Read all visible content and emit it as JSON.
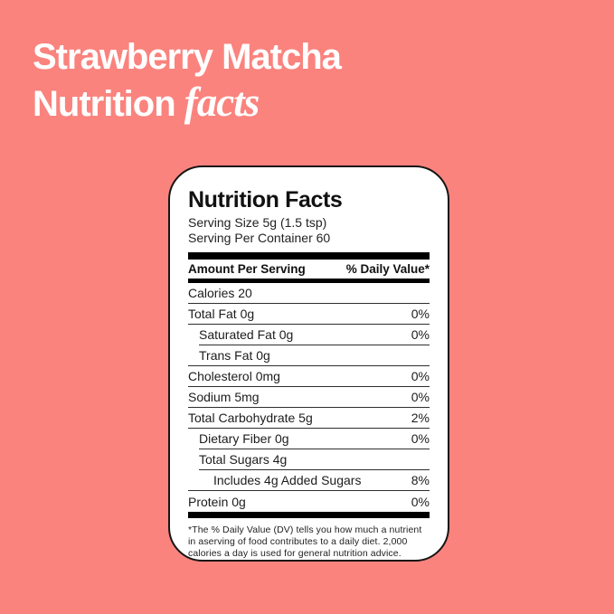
{
  "colors": {
    "background": "#FA837E",
    "card_background": "#FFFFFF",
    "card_border": "#151515",
    "title_text": "#FFFFFF",
    "label_text": "#1C1C1C",
    "bar": "#000000"
  },
  "title": {
    "line1": "Strawberry Matcha",
    "line2_regular": "Nutrition",
    "line2_italic": "facts"
  },
  "label": {
    "heading": "Nutrition Facts",
    "serving_size": "Serving Size 5g (1.5 tsp)",
    "servings_per_container": "Serving Per Container 60",
    "amount_per_serving": "Amount Per Serving",
    "daily_value_header": "% Daily Value*",
    "rows": [
      {
        "label": "Calories 20",
        "value": "",
        "indent": 0,
        "divider": "full"
      },
      {
        "label": "Total Fat 0g",
        "value": "0%",
        "indent": 0,
        "divider": "full"
      },
      {
        "label": "Saturated Fat 0g",
        "value": "0%",
        "indent": 1,
        "divider": "indent"
      },
      {
        "label": "Trans Fat 0g",
        "value": "",
        "indent": 1,
        "divider": "full"
      },
      {
        "label": "Cholesterol 0mg",
        "value": "0%",
        "indent": 0,
        "divider": "full"
      },
      {
        "label": "Sodium 5mg",
        "value": "0%",
        "indent": 0,
        "divider": "full"
      },
      {
        "label": "Total Carbohydrate 5g",
        "value": "2%",
        "indent": 0,
        "divider": "full"
      },
      {
        "label": "Dietary Fiber 0g",
        "value": "0%",
        "indent": 1,
        "divider": "indent"
      },
      {
        "label": "Total Sugars 4g",
        "value": "",
        "indent": 1,
        "divider": "indent"
      },
      {
        "label": "Includes 4g Added Sugars",
        "value": "8%",
        "indent": 2,
        "divider": "full"
      },
      {
        "label": "Protein 0g",
        "value": "0%",
        "indent": 0,
        "divider": "none"
      }
    ],
    "footnote": "*The % Daily Value (DV) tells you how much a nutrient in aserving of food contributes to a daily diet. 2,000 calories a day is used for general nutrition advice."
  }
}
